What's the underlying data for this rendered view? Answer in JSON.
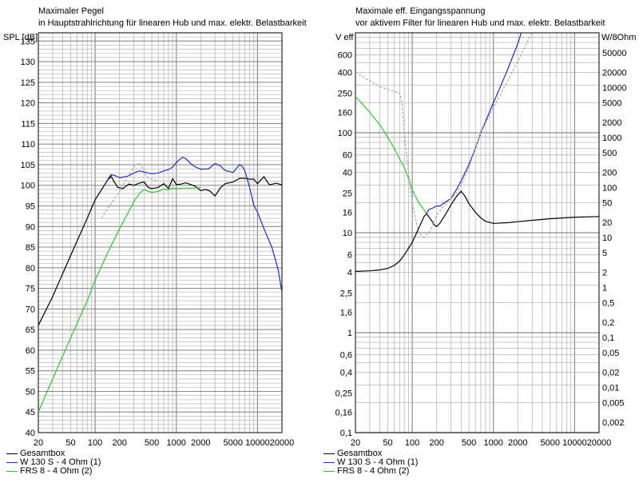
{
  "colors": {
    "gesamtbox": "#000000",
    "w130": "#1f2fb0",
    "frs8": "#35c435",
    "dashed_gray": "#a8a8a8",
    "grid_minor": "#b9b9b9",
    "grid_major": "#8c8c8c",
    "frame": "#000000"
  },
  "chart_data": [
    {
      "type": "line",
      "title": "Maximaler Pegel",
      "subtitle": "in Hauptstrahlrichtung für linearen Hub und max. elektr. Belastbarkeit",
      "ylabel": "SPL [dB]",
      "xscale": "log",
      "xlim": [
        20,
        20000
      ],
      "ylim": [
        40,
        137
      ],
      "x_tick_labels": [
        "20",
        "50",
        "100",
        "200",
        "500",
        "1000",
        "2000",
        "5000",
        "10000",
        "20000"
      ],
      "x_ticks": [
        20,
        50,
        100,
        200,
        500,
        1000,
        2000,
        5000,
        10000,
        20000
      ],
      "y_ticks": [
        40,
        45,
        50,
        55,
        60,
        65,
        70,
        75,
        80,
        85,
        90,
        95,
        100,
        105,
        110,
        115,
        120,
        125,
        130,
        135
      ],
      "grid": true,
      "legend": "bottom",
      "series": [
        {
          "name": "Gesamtbox",
          "color_key": "gesamtbox",
          "dash": false,
          "x": [
            20,
            30,
            50,
            80,
            100,
            130,
            155,
            170,
            190,
            220,
            260,
            300,
            350,
            400,
            450,
            500,
            600,
            700,
            800,
            900,
            1000,
            1150,
            1300,
            1500,
            1700,
            2000,
            2300,
            2600,
            3000,
            3500,
            4000,
            5000,
            6000,
            7000,
            8000,
            9000,
            10000,
            12000,
            14000,
            17000,
            20000
          ],
          "y": [
            66,
            73,
            83,
            92,
            96.5,
            100,
            102.4,
            101,
            99.5,
            99.2,
            100.3,
            100,
            100.5,
            100.8,
            99.5,
            99.2,
            99.5,
            100.4,
            99.2,
            101.6,
            100.2,
            100.3,
            100.6,
            100.2,
            99.8,
            98.7,
            99,
            98.6,
            97.4,
            99.4,
            100.4,
            100.8,
            101.7,
            101.7,
            101.5,
            101.5,
            100.4,
            102.1,
            100.1,
            100.5,
            100.1
          ]
        },
        {
          "name": "W 130 S - 4 Ohm (1)",
          "color_key": "w130",
          "dash": false,
          "x": [
            150,
            160,
            180,
            200,
            250,
            300,
            350,
            400,
            450,
            500,
            600,
            700,
            800,
            900,
            1000,
            1100,
            1200,
            1300,
            1400,
            1500,
            1700,
            2000,
            2500,
            3000,
            3500,
            4000,
            5000,
            6000,
            6500,
            7000,
            8000,
            9000,
            10000,
            12000,
            15000,
            18000,
            20000
          ],
          "y": [
            101.5,
            102.6,
            102.3,
            101.8,
            102.2,
            103,
            103.5,
            103.2,
            103,
            102.8,
            103,
            103.5,
            103.8,
            104.4,
            105.5,
            106.3,
            106.8,
            106.5,
            105.9,
            105.3,
            104.5,
            103.9,
            104,
            105.3,
            104.7,
            103.6,
            103.1,
            105,
            104.6,
            103.5,
            99.5,
            95.2,
            93.5,
            89.5,
            85,
            79.5,
            74
          ]
        },
        {
          "name": "FRS 8 - 4 Ohm (2)",
          "color_key": "frs8",
          "dash": false,
          "x": [
            20,
            30,
            50,
            80,
            100,
            150,
            200,
            250,
            300,
            350,
            390,
            400,
            450,
            500,
            600,
            700,
            800,
            900,
            1000,
            1200,
            1500,
            2000
          ],
          "y": [
            45,
            53,
            63,
            72,
            77,
            84.5,
            89.5,
            93,
            96,
            98,
            98.8,
            99,
            98.5,
            98.3,
            98.5,
            99.1,
            98.9,
            99.3,
            99.2,
            99.3,
            99.3,
            99.4
          ]
        },
        {
          "name": "",
          "color_key": "dashed_gray",
          "dash": true,
          "x": [
            120,
            150,
            170,
            200,
            250,
            300,
            350,
            400,
            430,
            500,
            600
          ],
          "y": [
            92,
            95,
            96.5,
            98.5,
            102,
            104.5,
            105.5,
            103.5,
            102,
            101.5,
            101
          ]
        }
      ]
    },
    {
      "type": "line",
      "title": "Maximale eff. Eingangsspannung",
      "subtitle": "vor aktivem Filter für linearen Hub und max. elektr. Belastbarkeit",
      "ylabel": "V eff",
      "y2label": "W/8Ohm",
      "xscale": "log",
      "yscale": "log",
      "xlim": [
        20,
        20000
      ],
      "ylim": [
        0.1,
        1000
      ],
      "x_tick_labels": [
        "20",
        "50",
        "100",
        "200",
        "500",
        "1000",
        "2000",
        "5000",
        "10000",
        "20000"
      ],
      "x_ticks": [
        20,
        50,
        100,
        200,
        500,
        1000,
        2000,
        5000,
        10000,
        20000
      ],
      "y_tick_labels": [
        "600",
        "400",
        "250",
        "160",
        "100",
        "60",
        "40",
        "25",
        "16",
        "10",
        "6",
        "4",
        "2,5",
        "1,6",
        "1",
        "0,6",
        "0,4",
        "0,25",
        "0,16",
        "0,1"
      ],
      "y_ticks": [
        600,
        400,
        250,
        160,
        100,
        60,
        40,
        25,
        16,
        10,
        6,
        4,
        2.5,
        1.6,
        1,
        0.6,
        0.4,
        0.25,
        0.16,
        0.1
      ],
      "y2_tick_labels": [
        "50000",
        "20000",
        "10000",
        "5000",
        "2000",
        "1000",
        "500",
        "200",
        "100",
        "50",
        "20",
        "10",
        "5",
        "2",
        "1",
        "0,5",
        "0,2",
        "0,1",
        "0,05",
        "0,02",
        "0,01",
        "0,005",
        "0,002"
      ],
      "y2_ticks": [
        50000,
        20000,
        10000,
        5000,
        2000,
        1000,
        500,
        200,
        100,
        50,
        20,
        10,
        5,
        2,
        1,
        0.5,
        0.2,
        0.1,
        0.05,
        0.02,
        0.01,
        0.005,
        0.002
      ],
      "grid": true,
      "legend": "bottom",
      "series": [
        {
          "name": "Gesamtbox",
          "color_key": "gesamtbox",
          "dash": false,
          "x": [
            20,
            30,
            40,
            50,
            60,
            70,
            80,
            100,
            120,
            140,
            150,
            170,
            190,
            200,
            220,
            260,
            300,
            350,
            400,
            450,
            500,
            600,
            700,
            800,
            1000,
            1500,
            2000,
            3000,
            5000,
            10000,
            20000
          ],
          "y": [
            4.1,
            4.15,
            4.25,
            4.4,
            4.7,
            5.2,
            6,
            8,
            11,
            14.5,
            15.5,
            13.5,
            11.8,
            11.5,
            12.5,
            15.5,
            19,
            23,
            26,
            23,
            19.5,
            16,
            14,
            13,
            12.4,
            12.6,
            12.9,
            13.3,
            13.8,
            14.3,
            14.5
          ]
        },
        {
          "name": "W 130 S - 4 Ohm (1)",
          "color_key": "w130",
          "dash": false,
          "x": [
            150,
            160,
            180,
            200,
            220,
            250,
            300,
            350,
            400,
            500,
            600,
            700,
            800,
            1000,
            1200,
            1500,
            1700,
            2000,
            2200
          ],
          "y": [
            15.5,
            17,
            17.7,
            18.5,
            18.5,
            20,
            22,
            27,
            33,
            48,
            70,
            100,
            130,
            200,
            280,
            430,
            560,
            780,
            1000
          ]
        },
        {
          "name": "FRS 8 - 4 Ohm (2)",
          "color_key": "frs8",
          "dash": false,
          "x": [
            20,
            25,
            30,
            40,
            50,
            60,
            70,
            80,
            90,
            100,
            120,
            140,
            150
          ],
          "y": [
            230,
            190,
            160,
            120,
            90,
            70,
            55,
            45,
            35,
            27,
            20,
            17,
            15.5
          ]
        },
        {
          "name": "",
          "color_key": "dashed_gray",
          "dash": true,
          "x": [
            20,
            30,
            40,
            50,
            60,
            70,
            75,
            80,
            90,
            100,
            120,
            140,
            160,
            180,
            200,
            250,
            300,
            350,
            400,
            500,
            700,
            1000,
            1500,
            2000,
            2500,
            3000
          ],
          "y": [
            400,
            330,
            290,
            270,
            260,
            250,
            200,
            100,
            40,
            20,
            10,
            9,
            10,
            12,
            15,
            19,
            22,
            25,
            30,
            45,
            100,
            180,
            330,
            520,
            750,
            1000
          ]
        }
      ]
    }
  ],
  "legend_items": [
    {
      "label": "Gesamtbox",
      "color_key": "gesamtbox"
    },
    {
      "label": "W 130 S - 4 Ohm (1)",
      "color_key": "w130"
    },
    {
      "label": "FRS 8 - 4 Ohm (2)",
      "color_key": "frs8"
    }
  ]
}
